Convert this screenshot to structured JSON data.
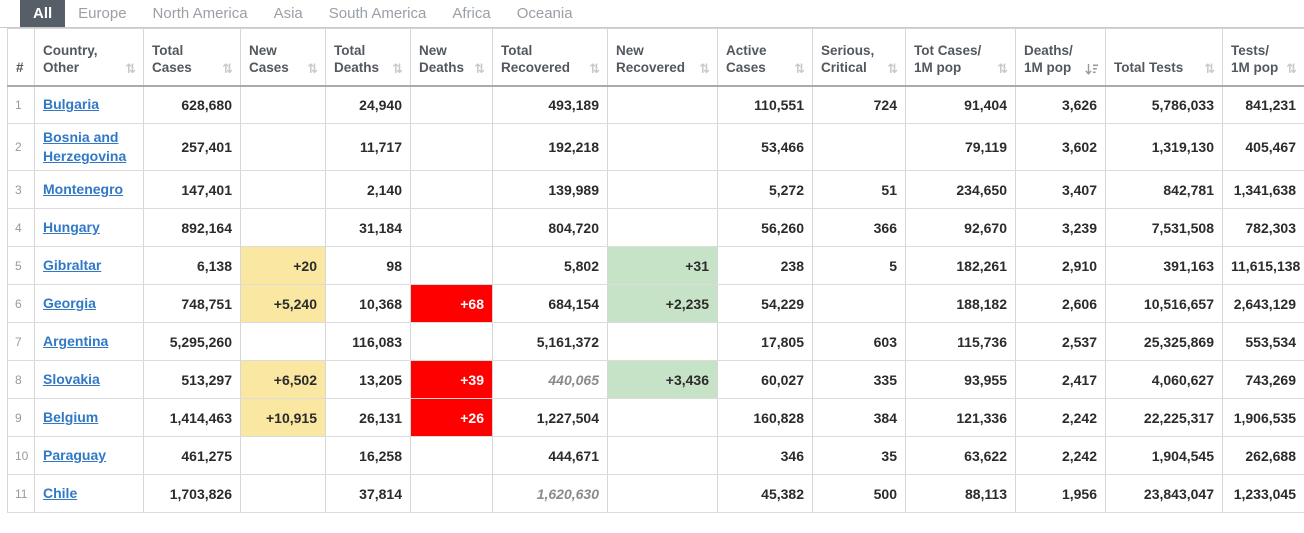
{
  "tabs": [
    {
      "label": "All",
      "active": true
    },
    {
      "label": "Europe",
      "active": false
    },
    {
      "label": "North America",
      "active": false
    },
    {
      "label": "Asia",
      "active": false
    },
    {
      "label": "South America",
      "active": false
    },
    {
      "label": "Africa",
      "active": false
    },
    {
      "label": "Oceania",
      "active": false
    }
  ],
  "colors": {
    "tab_active_bg": "#565E68",
    "tab_inactive_text": "#9AA0A6",
    "country_link": "#3178C6",
    "header_text": "#53585F",
    "number_text": "#2B2B2B",
    "estimate_text": "#8A8A8A",
    "new_cases_bg": "#FAE7A1",
    "new_deaths_bg": "#FF0000",
    "new_recovered_bg": "#C7E3C7",
    "cell_border": "#D6D6D6"
  },
  "table": {
    "columns": [
      {
        "key": "num",
        "label": "#",
        "sort": "none"
      },
      {
        "key": "country",
        "label": "Country, Other",
        "sort": "both"
      },
      {
        "key": "total_cases",
        "label": "Total Cases",
        "sort": "both"
      },
      {
        "key": "new_cases",
        "label": "New Cases",
        "sort": "both"
      },
      {
        "key": "total_deaths",
        "label": "Total Deaths",
        "sort": "both"
      },
      {
        "key": "new_deaths",
        "label": "New Deaths",
        "sort": "both"
      },
      {
        "key": "total_recovered",
        "label": "Total Recovered",
        "sort": "both"
      },
      {
        "key": "new_recovered",
        "label": "New Recovered",
        "sort": "both"
      },
      {
        "key": "active_cases",
        "label": "Active Cases",
        "sort": "both"
      },
      {
        "key": "serious_critical",
        "label": "Serious, Critical",
        "sort": "both"
      },
      {
        "key": "cases_per_1m",
        "label": "Tot Cases/ 1M pop",
        "sort": "both"
      },
      {
        "key": "deaths_per_1m",
        "label": "Deaths/ 1M pop",
        "sort": "desc"
      },
      {
        "key": "total_tests",
        "label": "Total Tests",
        "sort": "both"
      },
      {
        "key": "tests_per_1m",
        "label": "Tests/ 1M pop",
        "sort": "both"
      }
    ],
    "rows": [
      {
        "num": "1",
        "country": "Bulgaria",
        "total_cases": "628,680",
        "new_cases": "",
        "total_deaths": "24,940",
        "new_deaths": "",
        "total_recovered": "493,189",
        "new_recovered": "",
        "active_cases": "110,551",
        "serious_critical": "724",
        "cases_per_1m": "91,404",
        "deaths_per_1m": "3,626",
        "total_tests": "5,786,033",
        "tests_per_1m": "841,231"
      },
      {
        "num": "2",
        "country": "Bosnia and Herzegovina",
        "total_cases": "257,401",
        "new_cases": "",
        "total_deaths": "11,717",
        "new_deaths": "",
        "total_recovered": "192,218",
        "new_recovered": "",
        "active_cases": "53,466",
        "serious_critical": "",
        "cases_per_1m": "79,119",
        "deaths_per_1m": "3,602",
        "total_tests": "1,319,130",
        "tests_per_1m": "405,467"
      },
      {
        "num": "3",
        "country": "Montenegro",
        "total_cases": "147,401",
        "new_cases": "",
        "total_deaths": "2,140",
        "new_deaths": "",
        "total_recovered": "139,989",
        "new_recovered": "",
        "active_cases": "5,272",
        "serious_critical": "51",
        "cases_per_1m": "234,650",
        "deaths_per_1m": "3,407",
        "total_tests": "842,781",
        "tests_per_1m": "1,341,638"
      },
      {
        "num": "4",
        "country": "Hungary",
        "total_cases": "892,164",
        "new_cases": "",
        "total_deaths": "31,184",
        "new_deaths": "",
        "total_recovered": "804,720",
        "new_recovered": "",
        "active_cases": "56,260",
        "serious_critical": "366",
        "cases_per_1m": "92,670",
        "deaths_per_1m": "3,239",
        "total_tests": "7,531,508",
        "tests_per_1m": "782,303"
      },
      {
        "num": "5",
        "country": "Gibraltar",
        "total_cases": "6,138",
        "new_cases": "+20",
        "total_deaths": "98",
        "new_deaths": "",
        "total_recovered": "5,802",
        "new_recovered": "+31",
        "active_cases": "238",
        "serious_critical": "5",
        "cases_per_1m": "182,261",
        "deaths_per_1m": "2,910",
        "total_tests": "391,163",
        "tests_per_1m": "11,615,138"
      },
      {
        "num": "6",
        "country": "Georgia",
        "total_cases": "748,751",
        "new_cases": "+5,240",
        "total_deaths": "10,368",
        "new_deaths": "+68",
        "total_recovered": "684,154",
        "new_recovered": "+2,235",
        "active_cases": "54,229",
        "serious_critical": "",
        "cases_per_1m": "188,182",
        "deaths_per_1m": "2,606",
        "total_tests": "10,516,657",
        "tests_per_1m": "2,643,129"
      },
      {
        "num": "7",
        "country": "Argentina",
        "total_cases": "5,295,260",
        "new_cases": "",
        "total_deaths": "116,083",
        "new_deaths": "",
        "total_recovered": "5,161,372",
        "new_recovered": "",
        "active_cases": "17,805",
        "serious_critical": "603",
        "cases_per_1m": "115,736",
        "deaths_per_1m": "2,537",
        "total_tests": "25,325,869",
        "tests_per_1m": "553,534"
      },
      {
        "num": "8",
        "country": "Slovakia",
        "total_cases": "513,297",
        "new_cases": "+6,502",
        "total_deaths": "13,205",
        "new_deaths": "+39",
        "total_recovered": "440,065",
        "new_recovered": "+3,436",
        "active_cases": "60,027",
        "serious_critical": "335",
        "cases_per_1m": "93,955",
        "deaths_per_1m": "2,417",
        "total_tests": "4,060,627",
        "tests_per_1m": "743,269",
        "recovered_estimate": true
      },
      {
        "num": "9",
        "country": "Belgium",
        "total_cases": "1,414,463",
        "new_cases": "+10,915",
        "total_deaths": "26,131",
        "new_deaths": "+26",
        "total_recovered": "1,227,504",
        "new_recovered": "",
        "active_cases": "160,828",
        "serious_critical": "384",
        "cases_per_1m": "121,336",
        "deaths_per_1m": "2,242",
        "total_tests": "22,225,317",
        "tests_per_1m": "1,906,535"
      },
      {
        "num": "10",
        "country": "Paraguay",
        "total_cases": "461,275",
        "new_cases": "",
        "total_deaths": "16,258",
        "new_deaths": "",
        "total_recovered": "444,671",
        "new_recovered": "",
        "active_cases": "346",
        "serious_critical": "35",
        "cases_per_1m": "63,622",
        "deaths_per_1m": "2,242",
        "total_tests": "1,904,545",
        "tests_per_1m": "262,688"
      },
      {
        "num": "11",
        "country": "Chile",
        "total_cases": "1,703,826",
        "new_cases": "",
        "total_deaths": "37,814",
        "new_deaths": "",
        "total_recovered": "1,620,630",
        "new_recovered": "",
        "active_cases": "45,382",
        "serious_critical": "500",
        "cases_per_1m": "88,113",
        "deaths_per_1m": "1,956",
        "total_tests": "23,843,047",
        "tests_per_1m": "1,233,045",
        "recovered_estimate": true
      }
    ]
  }
}
